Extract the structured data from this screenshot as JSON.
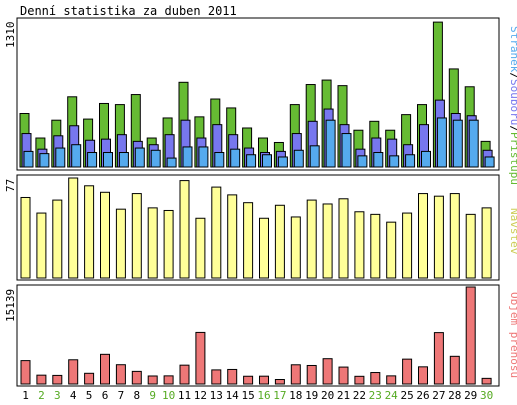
{
  "title": "Denní statistika za duben 2011",
  "colors": {
    "pristupu": "#66bb33",
    "soubory": "#7777ee",
    "stranky": "#55aaee",
    "navstevy": "#ffff99",
    "objem": "#ee7777",
    "weekend": "#55aa22",
    "axis": "#000000"
  },
  "chart_data": [
    {
      "type": "bar",
      "panel": "top",
      "y_max_label": "1310",
      "ylim": [
        0,
        1310
      ],
      "legend": [
        "Stránek",
        "/",
        "Souborů",
        "/",
        "Přístupů"
      ],
      "categories": [
        "1",
        "2",
        "3",
        "4",
        "5",
        "6",
        "7",
        "8",
        "9",
        "10",
        "11",
        "12",
        "13",
        "14",
        "15",
        "16",
        "17",
        "18",
        "19",
        "20",
        "21",
        "22",
        "23",
        "24",
        "25",
        "26",
        "27",
        "28",
        "29",
        "30"
      ],
      "weekend_days": [
        "2",
        "3",
        "9",
        "10",
        "16",
        "17",
        "23",
        "24",
        "30"
      ],
      "series": [
        {
          "name": "Přístupů",
          "values": [
            480,
            260,
            420,
            630,
            430,
            570,
            560,
            650,
            260,
            440,
            760,
            450,
            610,
            530,
            350,
            260,
            220,
            560,
            740,
            780,
            730,
            330,
            410,
            330,
            470,
            560,
            1300,
            880,
            720,
            230
          ]
        },
        {
          "name": "Souborů",
          "values": [
            300,
            160,
            280,
            370,
            240,
            250,
            290,
            230,
            200,
            290,
            420,
            260,
            380,
            290,
            170,
            130,
            140,
            300,
            410,
            520,
            380,
            160,
            260,
            250,
            200,
            380,
            600,
            480,
            460,
            150
          ]
        },
        {
          "name": "Stránek",
          "values": [
            140,
            120,
            170,
            200,
            130,
            130,
            130,
            170,
            150,
            80,
            180,
            180,
            130,
            160,
            110,
            110,
            90,
            150,
            190,
            420,
            300,
            100,
            130,
            100,
            110,
            140,
            440,
            420,
            420,
            90
          ]
        }
      ]
    },
    {
      "type": "bar",
      "panel": "middle",
      "y_max_label": "77",
      "ylim": [
        0,
        77
      ],
      "legend": [
        "Návštěv"
      ],
      "series": [
        {
          "name": "Návštěv",
          "values": [
            62,
            50,
            60,
            77,
            71,
            66,
            53,
            65,
            54,
            52,
            75,
            46,
            70,
            64,
            58,
            46,
            56,
            47,
            60,
            57,
            61,
            51,
            49,
            43,
            50,
            65,
            63,
            65,
            49,
            54
          ]
        }
      ]
    },
    {
      "type": "bar",
      "panel": "bottom",
      "y_max_label": "15139",
      "ylim": [
        0,
        15139
      ],
      "legend": [
        "Objem přenosu"
      ],
      "series": [
        {
          "name": "Objem přenosu",
          "values": [
            3650,
            1380,
            1340,
            3780,
            1670,
            4630,
            3010,
            1970,
            1250,
            1270,
            2940,
            8050,
            2200,
            2270,
            1210,
            1220,
            700,
            3000,
            2890,
            3950,
            2640,
            1200,
            1790,
            1270,
            3880,
            2680,
            8020,
            4320,
            15139,
            880
          ]
        }
      ]
    }
  ]
}
